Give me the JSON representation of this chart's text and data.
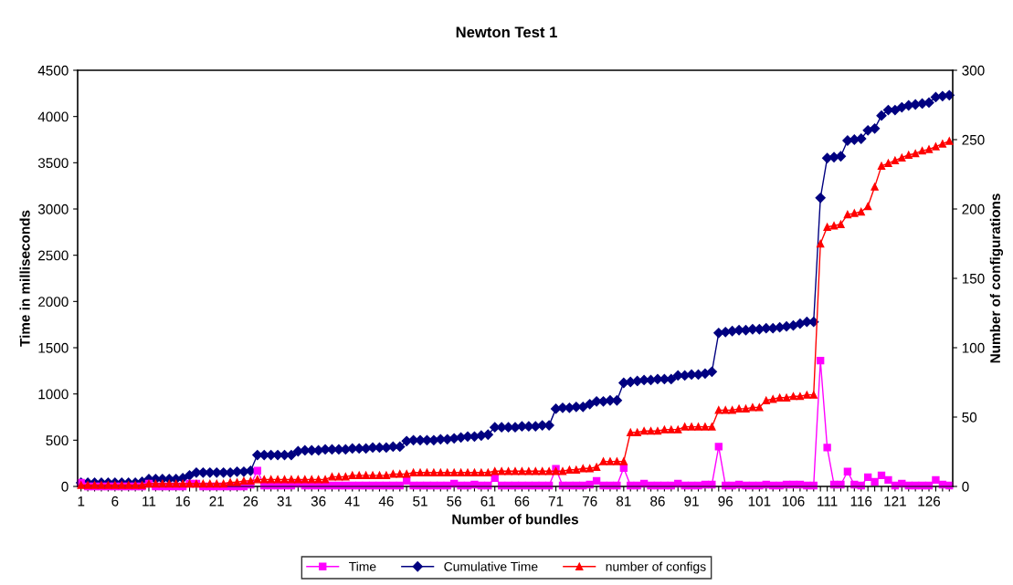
{
  "chart_data": {
    "type": "line",
    "title": "Newton Test 1",
    "xlabel": "Number of bundles",
    "ylabel": "Time in milliseconds",
    "y2label": "Number of configurations",
    "categories": [
      "1",
      null,
      null,
      null,
      null,
      "6",
      null,
      null,
      null,
      null,
      "11",
      null,
      null,
      null,
      null,
      "16",
      null,
      null,
      null,
      null,
      "21",
      null,
      null,
      null,
      null,
      "26",
      null,
      null,
      null,
      null,
      "31",
      null,
      null,
      null,
      null,
      "36",
      null,
      null,
      null,
      null,
      "41",
      null,
      null,
      null,
      null,
      "46",
      null,
      null,
      null,
      null,
      "51",
      null,
      null,
      null,
      null,
      "56",
      null,
      null,
      null,
      null,
      "61",
      null,
      null,
      null,
      null,
      "66",
      null,
      null,
      null,
      null,
      "71",
      null,
      null,
      null,
      null,
      "76",
      null,
      null,
      null,
      null,
      "81",
      null,
      null,
      null,
      null,
      "86",
      null,
      null,
      null,
      null,
      "91",
      null,
      null,
      null,
      null,
      "96",
      null,
      null,
      null,
      null,
      "101",
      null,
      null,
      null,
      null,
      "106",
      null,
      null,
      null,
      null,
      "111",
      null,
      null,
      null,
      null,
      "116",
      null,
      null,
      null,
      null,
      "121",
      null,
      null,
      null,
      null,
      "126",
      null,
      null,
      null
    ],
    "series": [
      {
        "name": "Time",
        "color": "#ff00ff",
        "marker": "square",
        "values": [
          40,
          0,
          0,
          0,
          0,
          0,
          0,
          0,
          0,
          0,
          30,
          0,
          0,
          0,
          0,
          0,
          30,
          30,
          0,
          0,
          0,
          0,
          0,
          0,
          0,
          20,
          170,
          10,
          10,
          10,
          10,
          10,
          30,
          10,
          10,
          10,
          10,
          10,
          10,
          10,
          10,
          10,
          10,
          10,
          10,
          10,
          10,
          10,
          60,
          10,
          10,
          10,
          10,
          10,
          10,
          30,
          10,
          10,
          20,
          10,
          10,
          90,
          10,
          10,
          10,
          10,
          10,
          10,
          10,
          10,
          190,
          10,
          10,
          10,
          10,
          20,
          60,
          10,
          10,
          10,
          200,
          10,
          10,
          30,
          10,
          10,
          10,
          10,
          30,
          10,
          10,
          10,
          20,
          20,
          430,
          10,
          10,
          20,
          10,
          10,
          10,
          20,
          10,
          10,
          20,
          20,
          20,
          10,
          10,
          1360,
          420,
          20,
          20,
          160,
          20,
          10,
          100,
          50,
          120,
          70,
          10,
          30,
          10,
          10,
          10,
          10,
          70,
          20,
          10
        ]
      },
      {
        "name": "Cumulative Time",
        "color": "#000080",
        "marker": "diamond",
        "values": [
          40,
          40,
          40,
          40,
          40,
          40,
          40,
          40,
          40,
          50,
          80,
          80,
          80,
          80,
          80,
          90,
          120,
          150,
          150,
          150,
          150,
          150,
          150,
          160,
          160,
          170,
          340,
          340,
          340,
          340,
          340,
          340,
          380,
          390,
          390,
          390,
          400,
          400,
          400,
          400,
          410,
          410,
          410,
          420,
          420,
          420,
          430,
          430,
          490,
          500,
          500,
          500,
          500,
          510,
          510,
          520,
          530,
          540,
          540,
          550,
          560,
          640,
          640,
          640,
          640,
          650,
          650,
          650,
          660,
          660,
          840,
          850,
          850,
          860,
          860,
          890,
          920,
          920,
          930,
          930,
          1120,
          1130,
          1140,
          1150,
          1150,
          1160,
          1160,
          1160,
          1200,
          1200,
          1210,
          1210,
          1220,
          1240,
          1660,
          1670,
          1680,
          1690,
          1690,
          1700,
          1700,
          1710,
          1710,
          1720,
          1730,
          1740,
          1760,
          1780,
          1780,
          3120,
          3550,
          3560,
          3570,
          3740,
          3750,
          3760,
          3850,
          3870,
          4010,
          4070,
          4070,
          4100,
          4120,
          4130,
          4140,
          4150,
          4210,
          4220,
          4230
        ]
      },
      {
        "name": "number of configs",
        "color": "#ff0000",
        "marker": "triangle",
        "axis": "y2",
        "values": [
          1,
          1,
          1,
          1,
          1,
          1,
          1,
          1,
          1,
          1,
          2,
          2,
          2,
          2,
          2,
          2,
          2,
          2,
          2,
          2,
          2,
          2,
          3,
          3,
          4,
          4,
          5,
          5,
          5,
          5,
          5,
          5,
          5,
          5,
          5,
          5,
          5,
          7,
          7,
          7,
          8,
          8,
          8,
          8,
          8,
          8,
          9,
          9,
          9,
          10,
          10,
          10,
          10,
          10,
          10,
          10,
          10,
          10,
          10,
          10,
          10,
          11,
          11,
          11,
          11,
          11,
          11,
          11,
          11,
          11,
          11,
          11,
          12,
          12,
          13,
          13,
          14,
          18,
          18,
          18,
          18,
          39,
          39,
          40,
          40,
          40,
          41,
          41,
          41,
          43,
          43,
          43,
          43,
          43,
          55,
          55,
          55,
          56,
          56,
          57,
          57,
          62,
          63,
          64,
          64,
          65,
          65,
          66,
          66,
          175,
          187,
          188,
          189,
          196,
          197,
          198,
          202,
          216,
          231,
          233,
          235,
          237,
          239,
          240,
          242,
          243,
          245,
          247,
          249
        ]
      }
    ],
    "ylim": [
      0,
      4500
    ],
    "yticks": [
      0,
      500,
      1000,
      1500,
      2000,
      2500,
      3000,
      3500,
      4000,
      4500
    ],
    "y2lim": [
      0,
      300
    ],
    "y2ticks": [
      0,
      50,
      100,
      150,
      200,
      250,
      300
    ],
    "grid": false,
    "legend": "bottom"
  }
}
